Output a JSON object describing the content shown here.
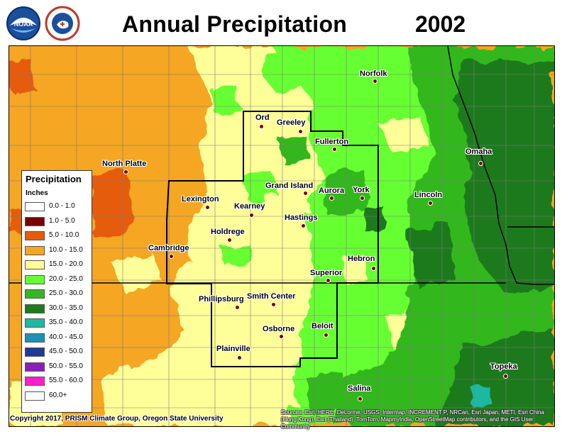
{
  "header": {
    "title": "Annual Precipitation",
    "year": "2002",
    "logos": [
      "noaa-logo",
      "national-weather-service-logo"
    ],
    "logo_text": {
      "noaa": "NOAA",
      "nws": "NATIONAL WEATHER SERVICE"
    }
  },
  "legend": {
    "title": "Precipitation",
    "unit": "Inches",
    "items": [
      {
        "label": "0.0 - 1.0",
        "color": "#ffffff"
      },
      {
        "label": "1.0 - 5.0",
        "color": "#7a0000"
      },
      {
        "label": "5.0 - 10.0",
        "color": "#e65c0a"
      },
      {
        "label": "10.0 - 15.0",
        "color": "#f5a623"
      },
      {
        "label": "15.0 - 20.0",
        "color": "#ffff99"
      },
      {
        "label": "20.0 - 25.0",
        "color": "#66ff33"
      },
      {
        "label": "25.0 - 30.0",
        "color": "#33b81f"
      },
      {
        "label": "30.0 - 35.0",
        "color": "#1f7a1f"
      },
      {
        "label": "35.0 - 40.0",
        "color": "#1fb8a0"
      },
      {
        "label": "40.0 - 45.0",
        "color": "#1f8fb8"
      },
      {
        "label": "45.0 - 50.0",
        "color": "#1f3a99"
      },
      {
        "label": "50.0 - 55.0",
        "color": "#8a1fb8"
      },
      {
        "label": "55.0 - 60.0",
        "color": "#ff1fcc"
      },
      {
        "label": "60.0+",
        "color": "#ffffff"
      }
    ]
  },
  "cities": [
    {
      "name": "Norfolk"
    },
    {
      "name": "Ord"
    },
    {
      "name": "Greeley"
    },
    {
      "name": "Fullerton"
    },
    {
      "name": "Omaha"
    },
    {
      "name": "North Platte"
    },
    {
      "name": "Grand Island"
    },
    {
      "name": "Aurora"
    },
    {
      "name": "York"
    },
    {
      "name": "Lincoln"
    },
    {
      "name": "Lexington"
    },
    {
      "name": "Kearney"
    },
    {
      "name": "Hastings"
    },
    {
      "name": "Holdrege"
    },
    {
      "name": "Cambridge"
    },
    {
      "name": "Hebron"
    },
    {
      "name": "Superior"
    },
    {
      "name": "Phillipsburg"
    },
    {
      "name": "Smith Center"
    },
    {
      "name": "Osborne"
    },
    {
      "name": "Beloit"
    },
    {
      "name": "Plainville"
    },
    {
      "name": "Topeka"
    },
    {
      "name": "Salina"
    }
  ],
  "footer": {
    "copyright": "Copyright 2017, PRISM Climate Group, Oregon State University",
    "attribution": "Sources: Esri, HERE, DeLorme, USGS, Intermap, INCREMENT P, NRCan, Esri Japan, METI, Esri China (Hong Kong), Esri (Thailand), TomTom, MapmyIndia, OpenStreetMap contributors, and the GIS User Community"
  }
}
